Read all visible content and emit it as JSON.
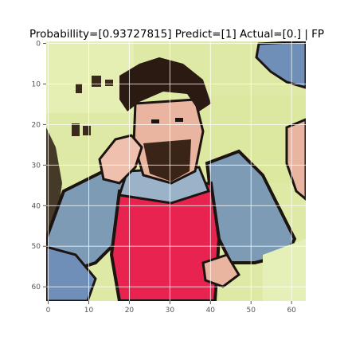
{
  "figure": {
    "title": "Probabillity=[0.93727815] Predict=[1] Actual=[0.] | FP"
  },
  "image": {
    "kind": "pixelated photo of a cartoon-like man with dark curly hair, beard, red shirt and blue sleeves, hand near face",
    "palette": {
      "background": "#dfe9a6",
      "shirt": "#e8234f",
      "sleeve": "#7e9bb5",
      "hair": "#2a1a12",
      "skin": "#e9b4a0",
      "outline": "#1c1410"
    }
  },
  "axes": {
    "x_ticks": [
      "0",
      "10",
      "20",
      "30",
      "40",
      "50",
      "60"
    ],
    "y_ticks": [
      "0",
      "10",
      "20",
      "30",
      "40",
      "50",
      "60"
    ],
    "x_range": [
      -0.5,
      63.5
    ],
    "y_range": [
      -0.5,
      63.5
    ],
    "grid": true,
    "tick_values": [
      0,
      10,
      20,
      30,
      40,
      50,
      60
    ]
  }
}
